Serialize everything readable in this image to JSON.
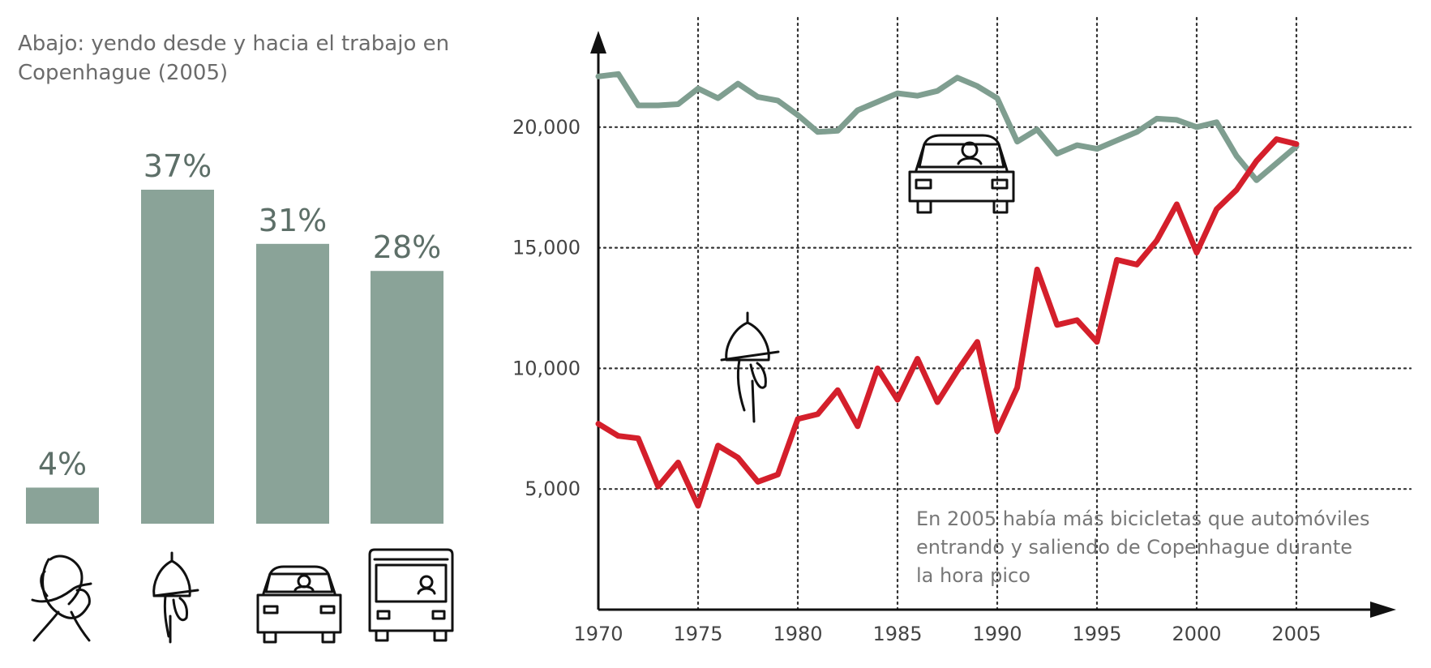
{
  "left_title": "Abajo: yendo desde y hacia el trabajo en Copenhague (2005)",
  "annotation": [
    "En 2005 había más bicicletas que automóviles",
    "entrando y saliendo de Copenhague durante",
    "la hora pico"
  ],
  "colors": {
    "bar": "#8aa398",
    "car_line": "#7f9e90",
    "bike_line": "#d41f2b"
  },
  "chart_data": [
    {
      "type": "bar",
      "categories": [
        "walking-icon",
        "bicycle-icon",
        "car-icon",
        "bus-icon"
      ],
      "values": [
        4,
        37,
        31,
        28
      ],
      "labels": [
        "4%",
        "37%",
        "31%",
        "28%"
      ],
      "ylim": [
        0,
        37
      ]
    },
    {
      "type": "line",
      "x_ticks": [
        "1970",
        "1975",
        "1980",
        "1985",
        "1990",
        "1995",
        "2000",
        "2005"
      ],
      "y_ticks": [
        "5,000",
        "10,000",
        "15,000",
        "20,000"
      ],
      "xlim": [
        1970,
        2009
      ],
      "ylim": [
        0,
        24000
      ],
      "grid": true,
      "series": [
        {
          "icon": "car-icon",
          "x": [
            1970,
            1971,
            1972,
            1973,
            1974,
            1975,
            1976,
            1977,
            1978,
            1979,
            1980,
            1981,
            1982,
            1983,
            1984,
            1985,
            1986,
            1987,
            1988,
            1989,
            1990,
            1991,
            1992,
            1993,
            1994,
            1995,
            1996,
            1997,
            1998,
            1999,
            2000,
            2001,
            2002,
            2003,
            2004,
            2005
          ],
          "values": [
            22100,
            22200,
            20900,
            20900,
            20950,
            21600,
            21200,
            21800,
            21250,
            21100,
            20500,
            19800,
            19850,
            20700,
            21050,
            21400,
            21300,
            21500,
            22050,
            21700,
            21200,
            19400,
            19900,
            18900,
            19250,
            19100,
            19450,
            19800,
            20350,
            20300,
            20000,
            20200,
            18800,
            17800,
            18500,
            19200
          ]
        },
        {
          "icon": "bicycle-icon",
          "x": [
            1970,
            1971,
            1972,
            1973,
            1974,
            1975,
            1976,
            1977,
            1978,
            1979,
            1980,
            1981,
            1982,
            1983,
            1984,
            1985,
            1986,
            1987,
            1988,
            1989,
            1990,
            1991,
            1992,
            1993,
            1994,
            1995,
            1996,
            1997,
            1998,
            1999,
            2000,
            2001,
            2002,
            2003,
            2004,
            2005
          ],
          "values": [
            7700,
            7200,
            7100,
            5100,
            6100,
            4300,
            6800,
            6300,
            5300,
            5600,
            7900,
            8100,
            9100,
            7600,
            10000,
            8700,
            10400,
            8600,
            9900,
            11100,
            7400,
            9200,
            14100,
            11800,
            12000,
            11100,
            14500,
            14300,
            15300,
            16800,
            14800,
            16600,
            17400,
            18600,
            19500,
            19300
          ]
        }
      ]
    }
  ]
}
